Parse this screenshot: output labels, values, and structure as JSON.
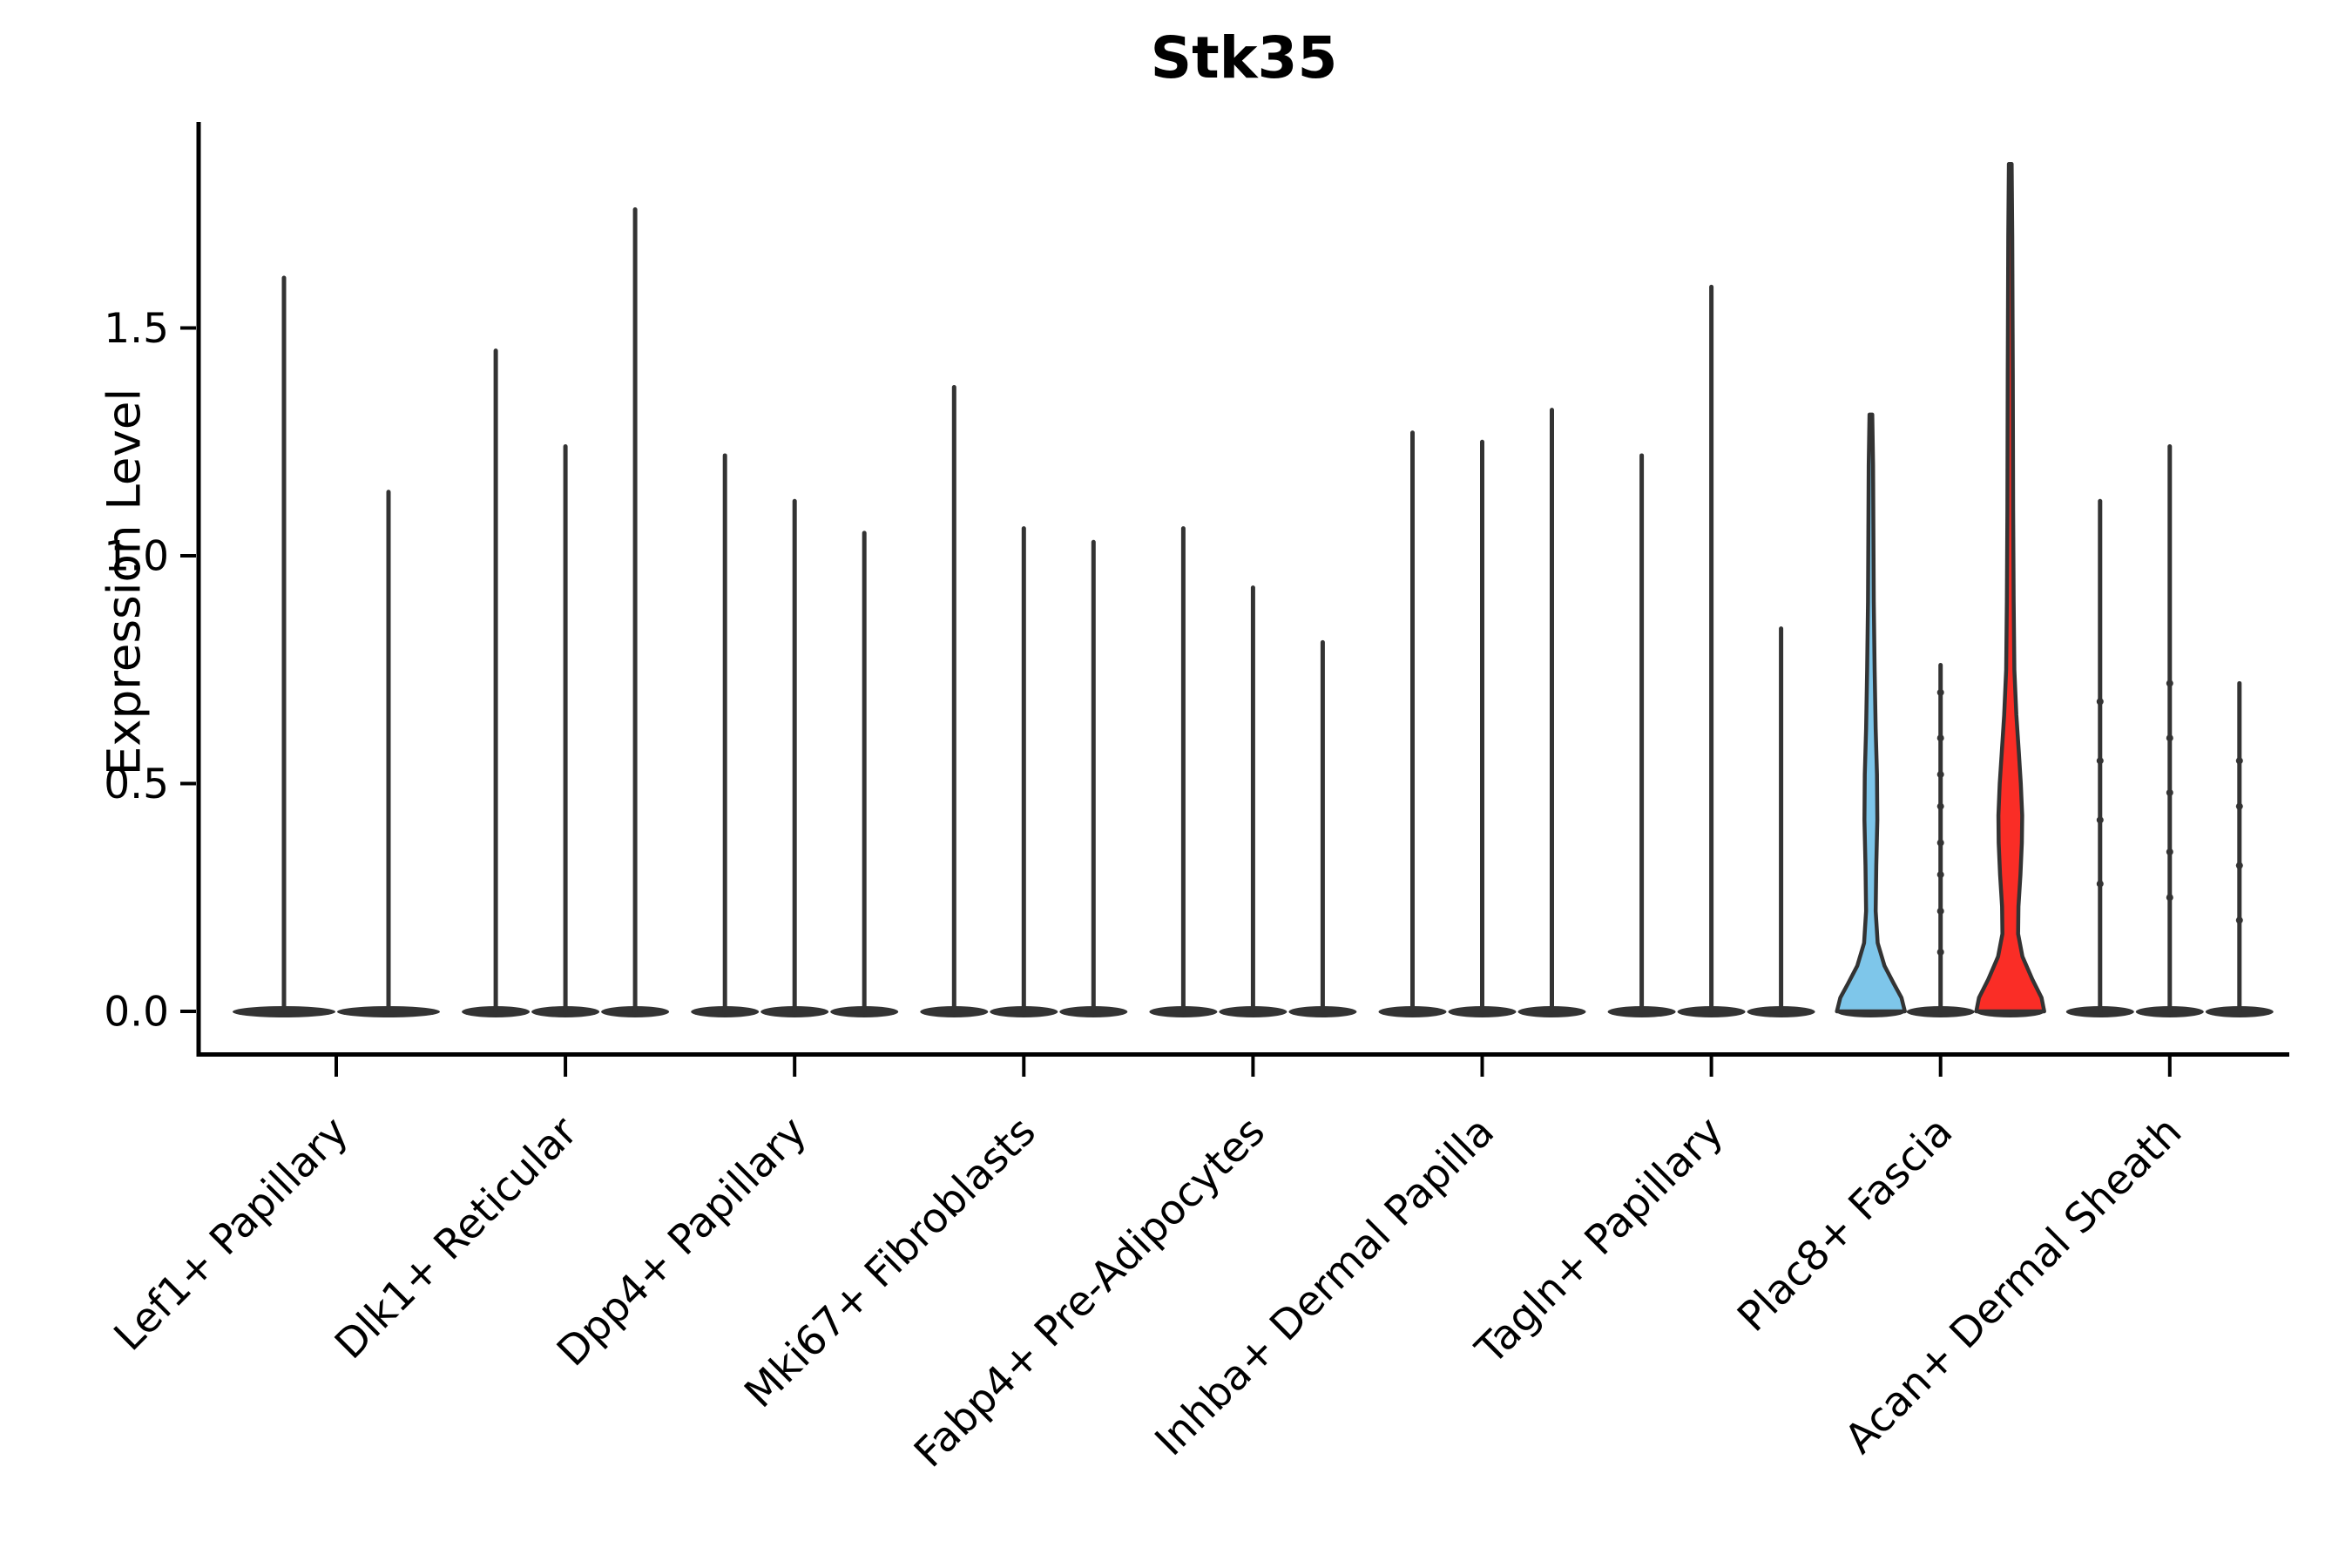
{
  "chart_data": {
    "type": "violin",
    "title": "Stk35",
    "ylabel": "Expression Level",
    "xlabel": "",
    "ylim": [
      -0.09,
      1.95
    ],
    "yticks": [
      0.0,
      0.5,
      1.0,
      1.5
    ],
    "ytick_labels": [
      "0.0",
      "0.5",
      "1.0",
      "1.5"
    ],
    "grid": false,
    "legend": "none",
    "x_tick_label_rotation": 45,
    "categories": [
      "Lef1+ Papillary",
      "Dlk1+ Reticular",
      "Dpp4+ Papillary",
      "Mki67+ Fibroblasts",
      "Fabp4+ Pre-Adipocytes",
      "Inhba+ Dermal Papilla",
      "Tagln+ Papillary",
      "Plac8+ Fascia",
      "Acan+ Dermal Sheath"
    ],
    "groups": [
      {
        "label": "Lef1+ Papillary",
        "violins": [
          {
            "max": 1.61
          },
          {
            "max": 1.14
          }
        ]
      },
      {
        "label": "Dlk1+ Reticular",
        "violins": [
          {
            "max": 1.45
          },
          {
            "max": 1.24
          },
          {
            "max": 1.76
          }
        ]
      },
      {
        "label": "Dpp4+ Papillary",
        "violins": [
          {
            "max": 1.22
          },
          {
            "max": 1.12
          },
          {
            "max": 1.05
          }
        ]
      },
      {
        "label": "Mki67+ Fibroblasts",
        "violins": [
          {
            "max": 1.37
          },
          {
            "max": 1.06
          },
          {
            "max": 1.03
          }
        ]
      },
      {
        "label": "Fabp4+ Pre-Adipocytes",
        "violins": [
          {
            "max": 1.06
          },
          {
            "max": 0.93
          },
          {
            "max": 0.81
          }
        ]
      },
      {
        "label": "Inhba+ Dermal Papilla",
        "violins": [
          {
            "max": 1.27
          },
          {
            "max": 1.25
          },
          {
            "max": 1.32
          }
        ]
      },
      {
        "label": "Tagln+ Papillary",
        "violins": [
          {
            "max": 1.22
          },
          {
            "max": 1.59
          },
          {
            "max": 0.84
          }
        ]
      },
      {
        "label": "Plac8+ Fascia",
        "violins": [
          {
            "max": 1.31,
            "fill": "#7EC6EA",
            "profile": [
              [
                0,
                1.0
              ],
              [
                0.03,
                0.9
              ],
              [
                0.06,
                0.68
              ],
              [
                0.1,
                0.4
              ],
              [
                0.15,
                0.2
              ],
              [
                0.22,
                0.14
              ],
              [
                0.32,
                0.16
              ],
              [
                0.42,
                0.19
              ],
              [
                0.52,
                0.18
              ],
              [
                0.62,
                0.14
              ],
              [
                0.75,
                0.11
              ],
              [
                0.9,
                0.085
              ],
              [
                1.05,
                0.075
              ],
              [
                1.2,
                0.065
              ],
              [
                1.31,
                0.04
              ]
            ]
          },
          {
            "max": 0.76,
            "dots": [
              0.13,
              0.22,
              0.3,
              0.37,
              0.45,
              0.52,
              0.6,
              0.7
            ]
          },
          {
            "max": 1.86,
            "fill": "#FA2D26",
            "profile": [
              [
                0,
                1.0
              ],
              [
                0.03,
                0.92
              ],
              [
                0.07,
                0.65
              ],
              [
                0.12,
                0.36
              ],
              [
                0.17,
                0.23
              ],
              [
                0.23,
                0.24
              ],
              [
                0.3,
                0.3
              ],
              [
                0.37,
                0.34
              ],
              [
                0.43,
                0.35
              ],
              [
                0.5,
                0.31
              ],
              [
                0.57,
                0.25
              ],
              [
                0.65,
                0.18
              ],
              [
                0.75,
                0.12
              ],
              [
                0.9,
                0.1
              ],
              [
                1.1,
                0.085
              ],
              [
                1.4,
                0.075
              ],
              [
                1.7,
                0.06
              ],
              [
                1.86,
                0.04
              ]
            ]
          }
        ]
      },
      {
        "label": "Acan+ Dermal Sheath",
        "violins": [
          {
            "max": 1.12,
            "dots": [
              0.28,
              0.42,
              0.55,
              0.68
            ]
          },
          {
            "max": 1.24,
            "dots": [
              0.25,
              0.35,
              0.48,
              0.6,
              0.72
            ]
          },
          {
            "max": 0.72,
            "dots": [
              0.2,
              0.32,
              0.45,
              0.55
            ]
          }
        ]
      }
    ]
  },
  "colors": {
    "axis": "#000000",
    "violin_line": "#333333",
    "highlight_blue": "#7EC6EA",
    "highlight_red": "#FA2D26"
  }
}
